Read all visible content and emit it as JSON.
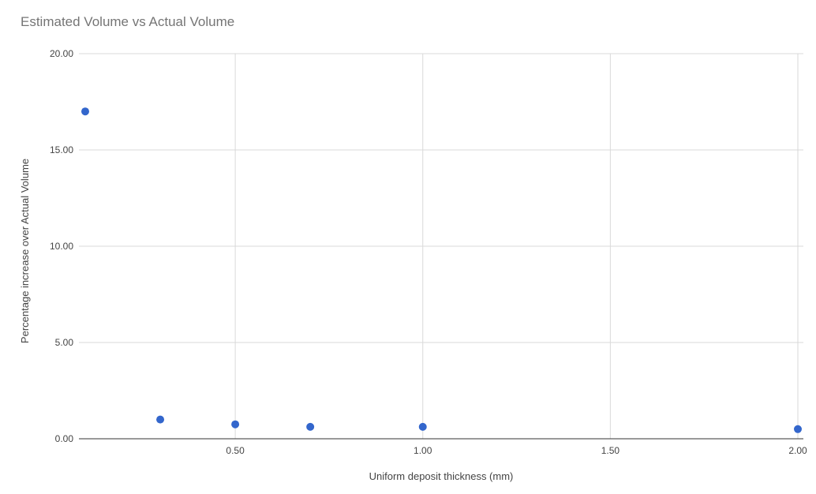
{
  "chart_data": {
    "type": "scatter",
    "title": "Estimated Volume vs Actual Volume",
    "xlabel": "Uniform deposit thickness (mm)",
    "ylabel": "Percentage increase over Actual Volume",
    "xlim": [
      0.1,
      2.0
    ],
    "ylim": [
      0,
      20
    ],
    "x_ticks": [
      0.5,
      1.0,
      1.5,
      2.0
    ],
    "x_tick_labels": [
      "0.50",
      "1.00",
      "1.50",
      "2.00"
    ],
    "y_ticks": [
      0,
      5,
      10,
      15,
      20
    ],
    "y_tick_labels": [
      "0.00",
      "5.00",
      "10.00",
      "15.00",
      "20.00"
    ],
    "grid": true,
    "legend": "none",
    "point_color": "#3366cc",
    "series": [
      {
        "x": [
          0.1,
          0.3,
          0.5,
          0.7,
          1.0,
          2.0
        ],
        "y": [
          17.0,
          1.0,
          0.75,
          0.62,
          0.62,
          0.5
        ]
      }
    ]
  }
}
